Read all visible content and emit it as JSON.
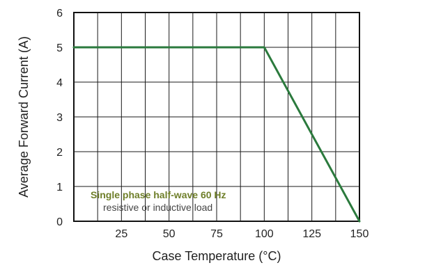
{
  "chart_data": {
    "type": "line",
    "xlabel": "Case Temperature (°C)",
    "ylabel": "Average Forward Current (A)",
    "annotation_lines": [
      "Single phase half-wave 60 Hz",
      "resistive or inductive load"
    ],
    "x_ticks": [
      25,
      50,
      75,
      100,
      125,
      150
    ],
    "y_ticks": [
      0,
      1,
      2,
      3,
      4,
      5,
      6
    ],
    "xlim": [
      0,
      150
    ],
    "ylim": [
      0,
      6
    ],
    "grid": true,
    "series": [
      {
        "x": [
          0,
          100,
          150
        ],
        "y": [
          5,
          5,
          0
        ]
      }
    ],
    "colors": {
      "series": "#2b7a3d",
      "grid": "#1a1a1a",
      "border": "#111111",
      "text": "#222222"
    }
  }
}
